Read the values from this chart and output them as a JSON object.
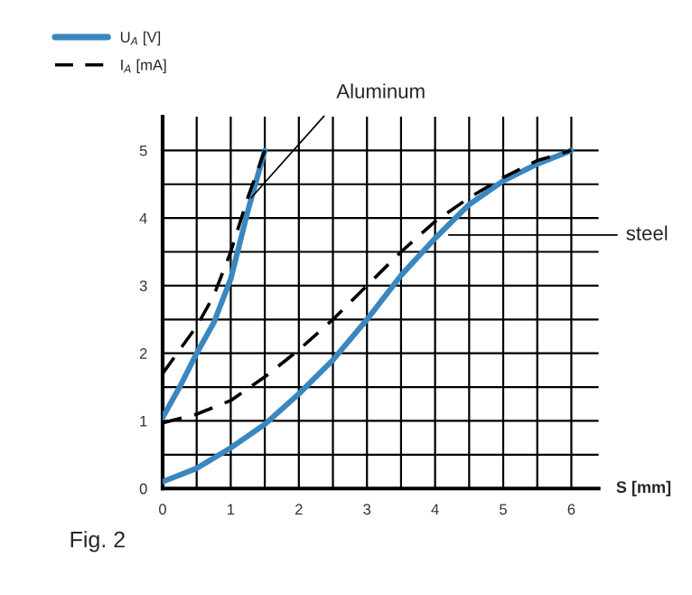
{
  "chart_data": {
    "type": "line",
    "xlabel": "S [mm]",
    "series": [
      {
        "name": "U$_{A}$ [V]",
        "color": "#3a87c0",
        "line_style": "solid",
        "x": [
          0,
          0.25,
          0.5,
          0.75,
          1.0,
          1.25,
          1.5
        ],
        "values": [
          1.05,
          1.5,
          2.0,
          2.45,
          3.1,
          4.1,
          5.0
        ]
      },
      {
        "name": "I$_{A}$ [mA]",
        "color": "#000000",
        "line_style": "dashed",
        "x": [
          0,
          0.25,
          0.5,
          0.75,
          1.0,
          1.25,
          1.5
        ],
        "values": [
          1.7,
          2.05,
          2.4,
          2.85,
          3.5,
          4.3,
          5.0
        ]
      },
      {
        "color": "#3a87c0",
        "line_style": "solid",
        "x": [
          0,
          0.5,
          1,
          1.5,
          2,
          2.5,
          3,
          3.5,
          4,
          4.5,
          5,
          5.5,
          6
        ],
        "values": [
          0.1,
          0.3,
          0.6,
          0.95,
          1.4,
          1.9,
          2.5,
          3.15,
          3.7,
          4.2,
          4.55,
          4.8,
          5.0
        ]
      },
      {
        "color": "#000000",
        "line_style": "dashed",
        "x": [
          0,
          0.5,
          1,
          1.5,
          2,
          2.5,
          3,
          3.5,
          4,
          4.5,
          5,
          5.5,
          6
        ],
        "values": [
          0.97,
          1.1,
          1.3,
          1.65,
          2.05,
          2.5,
          3.0,
          3.5,
          3.95,
          4.3,
          4.6,
          4.85,
          5.0
        ]
      }
    ],
    "xlim": [
      0,
      6.4
    ],
    "ylim": [
      0,
      5.5
    ],
    "xticks": [
      0,
      {
        "value": 0.5,
        "label": null
      },
      1,
      {
        "value": 1.5,
        "label": null
      },
      2,
      {
        "value": 2.5,
        "label": null
      },
      3,
      {
        "value": 3.5,
        "label": null
      },
      4,
      {
        "value": 4.5,
        "label": null
      },
      5,
      {
        "value": 5.5,
        "label": null
      },
      6
    ],
    "yticks": [
      0,
      {
        "value": 0.5,
        "label": null
      },
      1,
      {
        "value": 1.5,
        "label": null
      },
      2,
      {
        "value": 2.5,
        "label": null
      },
      3,
      {
        "value": 3.5,
        "label": null
      },
      4,
      {
        "value": 4.5,
        "label": null
      },
      5
    ],
    "grid": true,
    "legend": "top left",
    "annotations": [
      {
        "text": "Aluminum",
        "x": 1.3,
        "y": 4.3
      },
      {
        "text": "steel",
        "x": 4.2,
        "y": 3.75
      },
      "Fig. 2"
    ]
  }
}
